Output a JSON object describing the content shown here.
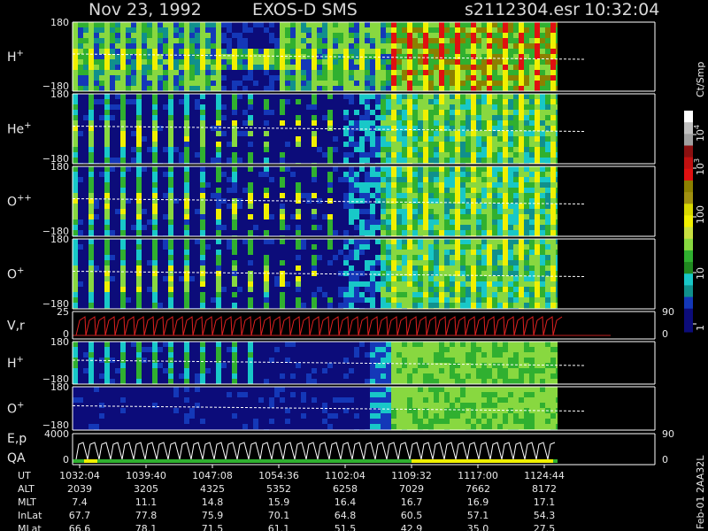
{
  "header": {
    "date": "Nov 23, 1992",
    "instrument": "EXOS-D SMS",
    "file": "s2112304.esr",
    "time": "10:32:04"
  },
  "panels": [
    {
      "species": "H",
      "charge": "+",
      "top": "180",
      "bottom": "−180"
    },
    {
      "species": "He",
      "charge": "+",
      "top": "180",
      "bottom": "−180"
    },
    {
      "species": "O",
      "charge": "++",
      "top": "180",
      "bottom": "−180"
    },
    {
      "species": "O",
      "charge": "+",
      "top": "180",
      "bottom": "−180"
    },
    {
      "species": "V,r",
      "top": "25",
      "bottom": "0",
      "right_top": "90",
      "right_bottom": "0"
    },
    {
      "species": "H",
      "charge": "+",
      "top": "180",
      "bottom": "−180"
    },
    {
      "species": "O",
      "charge": "+",
      "top": "180",
      "bottom": "−180"
    },
    {
      "species": "E,p",
      "top": "4000",
      "bottom": "0",
      "right_top": "90",
      "right_bottom": "0"
    }
  ],
  "qa_label": "QA",
  "colorbar": {
    "unit": "Ct/Smp",
    "ticks": [
      {
        "base": "10",
        "exp": "4"
      },
      {
        "base": "10",
        "exp": "3"
      },
      {
        "base": "100"
      },
      {
        "base": "10"
      },
      {
        "base": "1"
      }
    ]
  },
  "orbit_table": {
    "rows": [
      {
        "label": "UT",
        "values": [
          "1032:04",
          "1039:40",
          "1047:08",
          "1054:36",
          "1102:04",
          "1109:32",
          "1117:00",
          "1124:44"
        ]
      },
      {
        "label": "ALT",
        "values": [
          "2039",
          "3205",
          "4325",
          "5352",
          "6258",
          "7029",
          "7662",
          "8172"
        ]
      },
      {
        "label": "MLT",
        "values": [
          "7.4",
          "11.1",
          "14.8",
          "15.9",
          "16.4",
          "16.7",
          "16.9",
          "17.1"
        ]
      },
      {
        "label": "InLat",
        "values": [
          "67.7",
          "77.8",
          "75.9",
          "70.1",
          "64.8",
          "60.5",
          "57.1",
          "54.3"
        ]
      },
      {
        "label": "MLat",
        "values": [
          "66.6",
          "78.1",
          "71.5",
          "61.1",
          "51.5",
          "42.9",
          "35.0",
          "27.5"
        ]
      }
    ]
  },
  "footer_id": "Feb-01 2AA32L"
}
